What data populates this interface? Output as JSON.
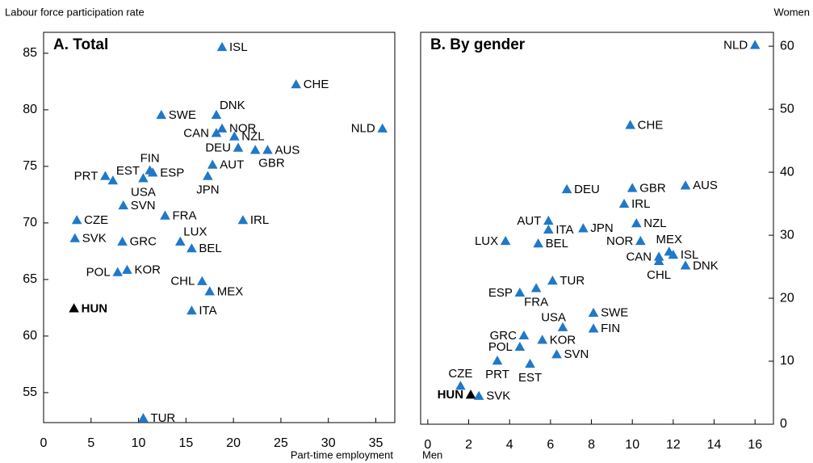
{
  "chart_data": [
    {
      "type": "scatter",
      "title": "A. Total",
      "y_label": "Labour force participation rate",
      "x_label": "Part-time employment",
      "y_axis_side": "left",
      "color": "#1f78c8",
      "labels": [
        "ISL",
        "CHE",
        "NLD",
        "DNK",
        "SWE",
        "NOR",
        "CAN",
        "NZL",
        "DEU",
        "GBR",
        "AUS",
        "AUT",
        "FIN",
        "ESP",
        "PRT",
        "EST",
        "USA",
        "JPN",
        "SVN",
        "FRA",
        "IRL",
        "CZE",
        "SVK",
        "GRC",
        "LUX",
        "BEL",
        "POL",
        "KOR",
        "CHL",
        "MEX",
        "HUN",
        "ITA",
        "TUR"
      ],
      "x": [
        18.8,
        26.6,
        35.7,
        18.2,
        12.4,
        18.8,
        18.2,
        20.1,
        20.5,
        22.3,
        23.6,
        17.8,
        11.2,
        11.5,
        6.5,
        7.3,
        10.5,
        17.3,
        8.4,
        12.8,
        21.0,
        3.5,
        3.3,
        8.3,
        14.4,
        15.6,
        7.8,
        8.8,
        16.7,
        17.5,
        3.2,
        15.6,
        10.5
      ],
      "values": [
        85.5,
        82.2,
        78.3,
        79.5,
        79.5,
        78.3,
        77.9,
        77.6,
        76.6,
        76.4,
        76.4,
        75.1,
        74.6,
        74.4,
        74.1,
        73.7,
        73.9,
        74.1,
        71.5,
        70.6,
        70.2,
        70.2,
        68.6,
        68.3,
        68.3,
        67.7,
        65.6,
        65.8,
        64.8,
        63.9,
        62.4,
        62.2,
        52.7
      ],
      "colors": [
        "#1f78c8",
        "#1f78c8",
        "#1f78c8",
        "#1f78c8",
        "#1f78c8",
        "#1f78c8",
        "#1f78c8",
        "#1f78c8",
        "#1f78c8",
        "#1f78c8",
        "#1f78c8",
        "#1f78c8",
        "#1f78c8",
        "#1f78c8",
        "#1f78c8",
        "#1f78c8",
        "#1f78c8",
        "#1f78c8",
        "#1f78c8",
        "#1f78c8",
        "#1f78c8",
        "#1f78c8",
        "#1f78c8",
        "#1f78c8",
        "#1f78c8",
        "#1f78c8",
        "#1f78c8",
        "#1f78c8",
        "#1f78c8",
        "#1f78c8",
        "#000000",
        "#1f78c8",
        "#1f78c8"
      ],
      "xlim": [
        0,
        37
      ],
      "ylim": [
        52.35,
        86.85
      ],
      "xticks": [
        0,
        5,
        10,
        15,
        20,
        25,
        30,
        35
      ],
      "yticks": [
        55,
        60,
        65,
        70,
        75,
        80,
        85
      ]
    },
    {
      "type": "scatter",
      "title": "B. By gender",
      "y_label": "Women",
      "x_label": "Men",
      "y_axis_side": "right",
      "color": "#1f78c8",
      "labels": [
        "NLD",
        "CHE",
        "DEU",
        "GBR",
        "AUS",
        "IRL",
        "AUT",
        "ITA",
        "JPN",
        "NZL",
        "LUX",
        "BEL",
        "NOR",
        "MEX",
        "ISL",
        "CAN",
        "CHL",
        "DNK",
        "TUR",
        "ESP",
        "FRA",
        "USA",
        "SWE",
        "FIN",
        "GRC",
        "KOR",
        "POL",
        "SVN",
        "PRT",
        "EST",
        "CZE",
        "HUN",
        "SVK"
      ],
      "x": [
        16.0,
        9.9,
        6.8,
        10.0,
        12.6,
        9.6,
        5.9,
        5.9,
        7.6,
        10.2,
        3.8,
        5.4,
        10.4,
        11.8,
        12.0,
        11.3,
        11.3,
        12.6,
        6.1,
        4.5,
        5.3,
        6.6,
        8.1,
        8.1,
        4.7,
        5.6,
        4.5,
        6.3,
        3.4,
        5.0,
        1.6,
        2.1,
        2.5
      ],
      "values": [
        60.1,
        47.4,
        37.2,
        37.4,
        37.8,
        34.9,
        32.2,
        30.8,
        31.0,
        31.8,
        29.0,
        28.6,
        29.0,
        27.3,
        26.8,
        26.5,
        25.8,
        25.1,
        22.7,
        20.8,
        21.5,
        15.3,
        17.6,
        15.1,
        14.0,
        13.3,
        12.2,
        11.0,
        10.0,
        9.5,
        6.0,
        4.6,
        4.4
      ],
      "colors": [
        "#1f78c8",
        "#1f78c8",
        "#1f78c8",
        "#1f78c8",
        "#1f78c8",
        "#1f78c8",
        "#1f78c8",
        "#1f78c8",
        "#1f78c8",
        "#1f78c8",
        "#1f78c8",
        "#1f78c8",
        "#1f78c8",
        "#1f78c8",
        "#1f78c8",
        "#1f78c8",
        "#1f78c8",
        "#1f78c8",
        "#1f78c8",
        "#1f78c8",
        "#1f78c8",
        "#1f78c8",
        "#1f78c8",
        "#1f78c8",
        "#1f78c8",
        "#1f78c8",
        "#1f78c8",
        "#1f78c8",
        "#1f78c8",
        "#1f78c8",
        "#1f78c8",
        "#000000",
        "#1f78c8"
      ],
      "xlim": [
        -0.35,
        16.9
      ],
      "ylim": [
        0,
        62.2
      ],
      "xticks": [
        0,
        2,
        4,
        6,
        8,
        10,
        12,
        14,
        16
      ],
      "yticks": [
        0,
        10,
        20,
        30,
        40,
        50,
        60
      ]
    }
  ]
}
